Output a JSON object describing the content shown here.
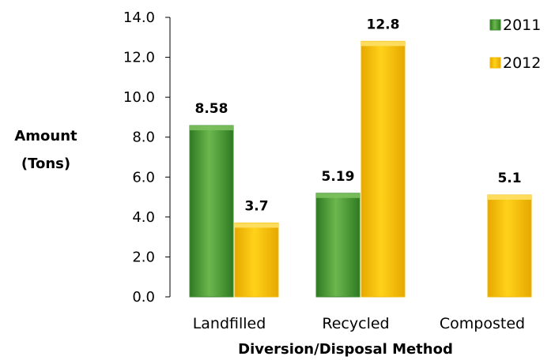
{
  "chart_data": {
    "type": "bar",
    "title": "",
    "xlabel": "Diversion/Disposal Method",
    "ylabel": [
      "Amount",
      "(Tons)"
    ],
    "categories": [
      "Landfilled",
      "Recycled",
      "Composted"
    ],
    "series": [
      {
        "name": "2011",
        "values": [
          8.58,
          5.19,
          null
        ],
        "labels": [
          "8.58",
          "5.19",
          ""
        ],
        "color": "#3d8a2e",
        "color_light": "#7cc05e"
      },
      {
        "name": "2012",
        "values": [
          3.7,
          12.8,
          5.1
        ],
        "labels": [
          "3.7",
          "12.8",
          "5.1"
        ],
        "color": "#f2b800",
        "color_light": "#ffe066"
      }
    ],
    "ylim": [
      0,
      14
    ],
    "yticks": [
      "0.0",
      "2.0",
      "4.0",
      "6.0",
      "8.0",
      "10.0",
      "12.0",
      "14.0"
    ],
    "ytick_values": [
      0,
      2,
      4,
      6,
      8,
      10,
      12,
      14
    ],
    "grid": false,
    "legend": "top-right"
  }
}
